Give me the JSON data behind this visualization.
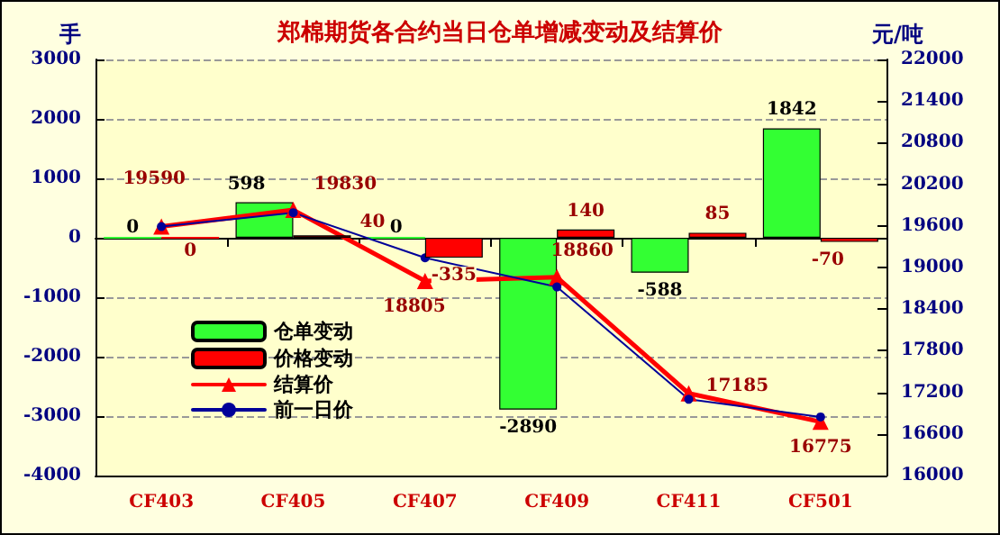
{
  "chart_data": {
    "type": "bar",
    "title": "郑棉期货各合约当日仓单增减变动及结算价",
    "ylabel": "手",
    "y2label": "元/吨",
    "categories": [
      "CF403",
      "CF405",
      "CF407",
      "CF409",
      "CF411",
      "CF501"
    ],
    "series": [
      {
        "name": "仓单变动",
        "color": "#33ff33",
        "values": [
          0,
          598,
          0,
          -2890,
          -588,
          1842
        ],
        "value_labels": [
          "0",
          "598",
          "0",
          "-2890",
          "-588",
          "1842"
        ]
      },
      {
        "name": "价格变动",
        "color": "#ff0000",
        "values": [
          0,
          40,
          -335,
          140,
          85,
          -70
        ],
        "value_labels": [
          "0",
          "40",
          "-335",
          "140",
          "85",
          "-70"
        ]
      },
      {
        "name": "结算价",
        "type": "line",
        "axis": "y2",
        "color": "#ff0000",
        "marker": "triangle",
        "values": [
          19590,
          19830,
          18805,
          18860,
          17185,
          16775
        ],
        "value_labels": [
          "19590",
          "19830",
          "18805",
          "18860",
          "17185",
          "16775"
        ]
      },
      {
        "name": "前一日价",
        "type": "line",
        "axis": "y2",
        "color": "#000099",
        "marker": "circle",
        "values": [
          19590,
          19790,
          19140,
          18720,
          17100,
          16845
        ]
      }
    ],
    "ylim": [
      -4000,
      3000
    ],
    "yticks": [
      -4000,
      -3000,
      -2000,
      -1000,
      0,
      1000,
      2000,
      3000
    ],
    "y2lim": [
      16000,
      22000
    ],
    "y2ticks": [
      16000,
      16600,
      17200,
      17800,
      18400,
      19000,
      19600,
      20200,
      20800,
      21400,
      22000
    ],
    "grid": "y",
    "legend": "left"
  }
}
